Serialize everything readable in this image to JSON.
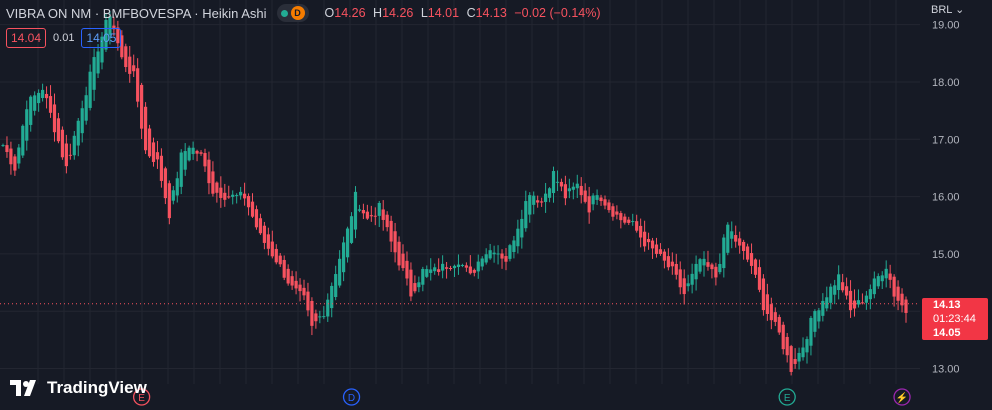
{
  "header": {
    "title": "VIBRA ON NM · BMFBOVESPA · Heikin Ashi",
    "interval_badge": "D",
    "ohlc": {
      "o_label": "O",
      "o_value": "14.26",
      "h_label": "H",
      "h_value": "14.26",
      "l_label": "L",
      "l_value": "14.01",
      "c_label": "C",
      "c_value": "14.13",
      "change": "−0.02 (−0.14%)"
    }
  },
  "trade": {
    "sell": "14.04",
    "spread": "0.01",
    "buy": "14.05"
  },
  "currency": "BRL",
  "price_scale": {
    "current_price": "14.13",
    "countdown": "01:23:44",
    "ask": "14.05"
  },
  "brand": "TradingView",
  "events": [
    {
      "icon": "earnings-icon",
      "label": "E",
      "color": "#f7525f",
      "index": 35
    },
    {
      "icon": "dividend-icon",
      "label": "D",
      "color": "#2962ff",
      "index": 88
    },
    {
      "icon": "earnings-icon",
      "label": "E",
      "color": "#22ab94",
      "index": 198
    },
    {
      "icon": "split-icon",
      "label": "⚡",
      "color": "#9c27b0",
      "index": 227
    }
  ],
  "colors": {
    "up": "#22ab94",
    "down": "#f7525f",
    "background": "#161a25",
    "grid": "#232631"
  },
  "chart_data": {
    "type": "candlestick",
    "yticks": [
      13.0,
      14.0,
      15.0,
      16.0,
      17.0,
      18.0,
      19.0
    ],
    "ylim": [
      12.73,
      19.43
    ],
    "current_price": 14.13,
    "anchors": [
      [
        0,
        16.9
      ],
      [
        3,
        16.5
      ],
      [
        6,
        17.6
      ],
      [
        10,
        17.9
      ],
      [
        13,
        17.2
      ],
      [
        16,
        16.5
      ],
      [
        20,
        17.6
      ],
      [
        24,
        18.6
      ],
      [
        27,
        19.2
      ],
      [
        30,
        18.4
      ],
      [
        33,
        18.1
      ],
      [
        36,
        16.8
      ],
      [
        39,
        16.6
      ],
      [
        42,
        15.7
      ],
      [
        45,
        16.7
      ],
      [
        47,
        16.9
      ],
      [
        50,
        16.7
      ],
      [
        53,
        16.1
      ],
      [
        57,
        16.0
      ],
      [
        61,
        16.0
      ],
      [
        65,
        15.3
      ],
      [
        69,
        14.9
      ],
      [
        73,
        14.4
      ],
      [
        76,
        14.2
      ],
      [
        78,
        13.7
      ],
      [
        81,
        14.0
      ],
      [
        84,
        14.7
      ],
      [
        87,
        15.4
      ],
      [
        89,
        16.0
      ],
      [
        92,
        15.6
      ],
      [
        95,
        15.8
      ],
      [
        98,
        15.2
      ],
      [
        101,
        14.7
      ],
      [
        103,
        14.3
      ],
      [
        106,
        14.7
      ],
      [
        109,
        14.7
      ],
      [
        112,
        14.8
      ],
      [
        115,
        14.9
      ],
      [
        118,
        14.6
      ],
      [
        121,
        15.0
      ],
      [
        124,
        15.1
      ],
      [
        127,
        14.9
      ],
      [
        130,
        15.5
      ],
      [
        133,
        16.1
      ],
      [
        136,
        15.9
      ],
      [
        139,
        16.4
      ],
      [
        142,
        16.0
      ],
      [
        145,
        16.2
      ],
      [
        148,
        15.8
      ],
      [
        150,
        16.1
      ],
      [
        153,
        15.8
      ],
      [
        156,
        15.6
      ],
      [
        159,
        15.5
      ],
      [
        162,
        15.2
      ],
      [
        165,
        15.0
      ],
      [
        169,
        14.7
      ],
      [
        172,
        14.3
      ],
      [
        176,
        14.9
      ],
      [
        180,
        14.6
      ],
      [
        183,
        15.5
      ],
      [
        186,
        15.1
      ],
      [
        189,
        14.8
      ],
      [
        192,
        14.1
      ],
      [
        196,
        13.6
      ],
      [
        199,
        13.0
      ],
      [
        202,
        13.4
      ],
      [
        205,
        14.0
      ],
      [
        208,
        14.3
      ],
      [
        211,
        14.6
      ],
      [
        214,
        14.0
      ],
      [
        217,
        14.2
      ],
      [
        220,
        14.5
      ],
      [
        223,
        14.8
      ],
      [
        225,
        14.3
      ],
      [
        228,
        14.0
      ]
    ]
  }
}
